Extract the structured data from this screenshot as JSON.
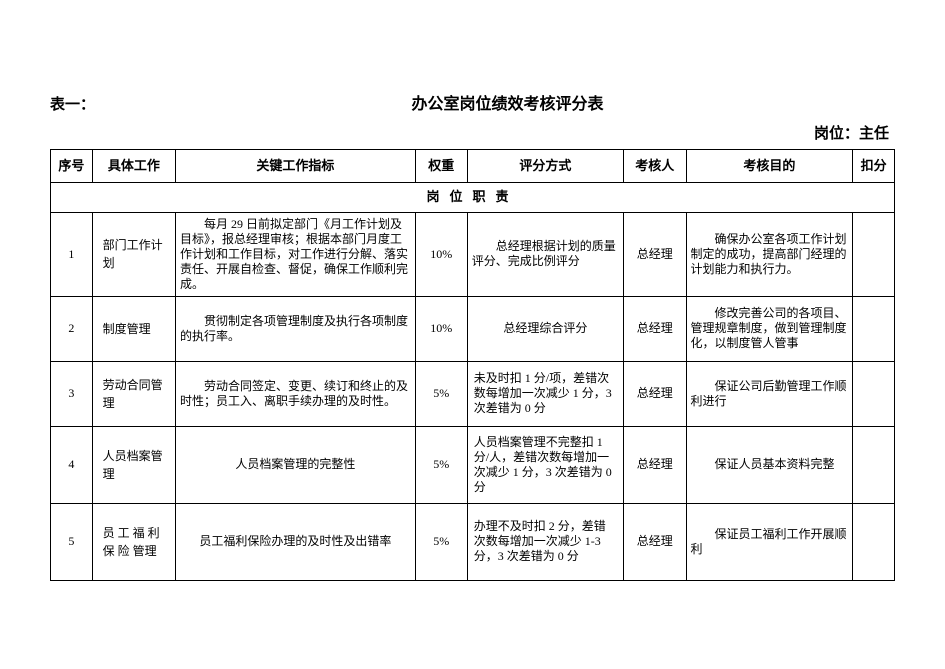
{
  "header": {
    "table_label": "表一：",
    "title": "办公室岗位绩效考核评分表",
    "position_label": "岗位：主任"
  },
  "columns": {
    "seq": "序号",
    "work": "具体工作",
    "key": "关键工作指标",
    "weight": "权重",
    "scoring": "评分方式",
    "assessor": "考核人",
    "goal": "考核目的",
    "deduct": "扣分"
  },
  "section_title": "岗位职责",
  "rows": [
    {
      "seq": "1",
      "work": "部门工作计划",
      "key": "每月 29 日前拟定部门《月工作计划及目标》，报总经理审核；根据本部门月度工作计划和工作目标，对工作进行分解、落实责任、开展自检查、督促，确保工作顺利完成。",
      "weight": "10%",
      "scoring": "总经理根据计划的质量评分、完成比例评分",
      "assessor": "总经理",
      "goal": "确保办公室各项工作计划制定的成功，提高部门经理的计划能力和执行力。"
    },
    {
      "seq": "2",
      "work": "制度管理",
      "key": "贯彻制定各项管理制度及执行各项制度的执行率。",
      "weight": "10%",
      "scoring": "总经理综合评分",
      "assessor": "总经理",
      "goal": "修改完善公司的各项目、管理规章制度，做到管理制度化，以制度管人管事"
    },
    {
      "seq": "3",
      "work": "劳动合同管理",
      "key": "劳动合同签定、变更、续订和终止的及时性；员工入、离职手续办理的及时性。",
      "weight": "5%",
      "scoring": "未及时扣 1 分/项，差错次数每增加一次减少 1 分，3 次差错为 0 分",
      "assessor": "总经理",
      "goal": "保证公司后勤管理工作顺利进行"
    },
    {
      "seq": "4",
      "work": "人员档案管理",
      "key": "人员档案管理的完整性",
      "weight": "5%",
      "scoring": "人员档案管理不完整扣 1 分/人，差错次数每增加一次减少 1 分，3 次差错为 0 分",
      "assessor": "总经理",
      "goal": "保证人员基本资料完整"
    },
    {
      "seq": "5",
      "work": "员 工 福 利 保 险 管理",
      "key": "员工福利保险办理的及时性及出错率",
      "weight": "5%",
      "scoring": "办理不及时扣 2 分，差错次数每增加一次减少 1-3 分，3 次差错为 0 分",
      "assessor": "总经理",
      "goal": "保证员工福利工作开展顺利"
    }
  ]
}
